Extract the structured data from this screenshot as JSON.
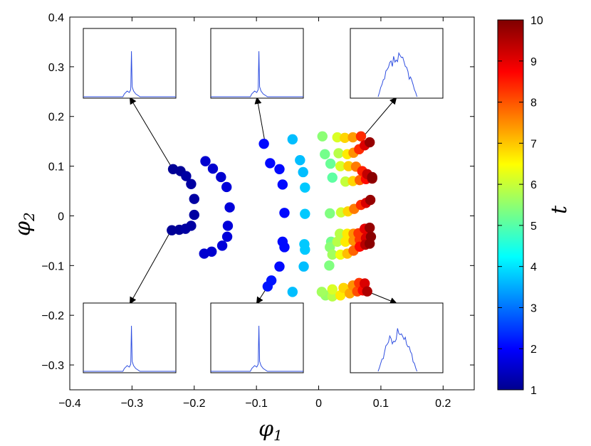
{
  "chart_data": {
    "type": "scatter",
    "xlabel_main": "φ",
    "xlabel_sub": "1",
    "ylabel_main": "φ",
    "ylabel_sub": "2",
    "xlim": [
      -0.4,
      0.25
    ],
    "ylim": [
      -0.35,
      0.4
    ],
    "xticks": [
      -0.4,
      -0.3,
      -0.2,
      -0.1,
      0,
      0.1,
      0.2
    ],
    "xtick_labels": [
      "−0.4",
      "−0.3",
      "−0.2",
      "−0.1",
      "0",
      "0.1",
      "0.2"
    ],
    "yticks": [
      0.4,
      0.3,
      0.2,
      0.1,
      0,
      -0.1,
      -0.2,
      -0.3
    ],
    "ytick_labels": [
      "0.4",
      "0.3",
      "0.2",
      "0.1",
      "0",
      "−0.1",
      "−0.2",
      "−0.3"
    ],
    "grid": false,
    "colorbar": {
      "label": "t",
      "min": 1,
      "max": 10,
      "ticks": [
        1,
        2,
        3,
        4,
        5,
        6,
        7,
        8,
        9,
        10
      ],
      "tick_labels": [
        "1",
        "2",
        "3",
        "4",
        "5",
        "6",
        "7",
        "8",
        "9",
        "10"
      ],
      "colormap": "jet"
    },
    "points": [
      {
        "x": -0.234,
        "y": 0.094,
        "t": 1.2
      },
      {
        "x": -0.222,
        "y": 0.09,
        "t": 1.2
      },
      {
        "x": -0.213,
        "y": 0.08,
        "t": 1.3
      },
      {
        "x": -0.205,
        "y": 0.064,
        "t": 1.3
      },
      {
        "x": -0.2,
        "y": 0.034,
        "t": 1.3
      },
      {
        "x": -0.2,
        "y": 0.002,
        "t": 1.3
      },
      {
        "x": -0.205,
        "y": -0.02,
        "t": 1.3
      },
      {
        "x": -0.214,
        "y": -0.026,
        "t": 1.3
      },
      {
        "x": -0.224,
        "y": -0.028,
        "t": 1.2
      },
      {
        "x": -0.236,
        "y": -0.029,
        "t": 1.2
      },
      {
        "x": -0.182,
        "y": 0.11,
        "t": 1.7
      },
      {
        "x": -0.17,
        "y": 0.095,
        "t": 1.7
      },
      {
        "x": -0.157,
        "y": 0.078,
        "t": 1.7
      },
      {
        "x": -0.148,
        "y": 0.058,
        "t": 1.8
      },
      {
        "x": -0.143,
        "y": 0.017,
        "t": 1.8
      },
      {
        "x": -0.146,
        "y": -0.02,
        "t": 1.8
      },
      {
        "x": -0.147,
        "y": -0.042,
        "t": 1.8
      },
      {
        "x": -0.155,
        "y": -0.06,
        "t": 1.8
      },
      {
        "x": -0.172,
        "y": -0.072,
        "t": 1.7
      },
      {
        "x": -0.184,
        "y": -0.076,
        "t": 1.7
      },
      {
        "x": -0.088,
        "y": 0.145,
        "t": 2.2
      },
      {
        "x": -0.078,
        "y": 0.106,
        "t": 2.2
      },
      {
        "x": -0.063,
        "y": 0.094,
        "t": 2.2
      },
      {
        "x": -0.058,
        "y": 0.063,
        "t": 2.2
      },
      {
        "x": -0.055,
        "y": 0.006,
        "t": 2.2
      },
      {
        "x": -0.058,
        "y": -0.052,
        "t": 2.2
      },
      {
        "x": -0.055,
        "y": -0.063,
        "t": 2.2
      },
      {
        "x": -0.063,
        "y": -0.102,
        "t": 2.2
      },
      {
        "x": -0.076,
        "y": -0.13,
        "t": 2.3
      },
      {
        "x": -0.082,
        "y": -0.142,
        "t": 2.3
      },
      {
        "x": -0.042,
        "y": 0.154,
        "t": 3.8
      },
      {
        "x": -0.03,
        "y": 0.112,
        "t": 3.8
      },
      {
        "x": -0.025,
        "y": 0.088,
        "t": 3.8
      },
      {
        "x": -0.022,
        "y": 0.057,
        "t": 3.9
      },
      {
        "x": -0.022,
        "y": 0.004,
        "t": 3.9
      },
      {
        "x": -0.023,
        "y": -0.057,
        "t": 3.9
      },
      {
        "x": -0.022,
        "y": -0.068,
        "t": 3.9
      },
      {
        "x": -0.024,
        "y": -0.102,
        "t": 3.8
      },
      {
        "x": -0.042,
        "y": -0.153,
        "t": 3.8
      },
      {
        "x": 0.006,
        "y": 0.16,
        "t": 5.6
      },
      {
        "x": 0.01,
        "y": 0.124,
        "t": 5.4
      },
      {
        "x": 0.019,
        "y": 0.105,
        "t": 5.3
      },
      {
        "x": 0.022,
        "y": 0.077,
        "t": 5.2
      },
      {
        "x": 0.018,
        "y": 0.005,
        "t": 5.5
      },
      {
        "x": 0.02,
        "y": -0.052,
        "t": 5.4
      },
      {
        "x": 0.018,
        "y": -0.063,
        "t": 5.6
      },
      {
        "x": 0.017,
        "y": -0.1,
        "t": 5.5
      },
      {
        "x": 0.005,
        "y": -0.153,
        "t": 5.8
      },
      {
        "x": 0.011,
        "y": -0.16,
        "t": 5.7
      },
      {
        "x": 0.03,
        "y": 0.158,
        "t": 6.3
      },
      {
        "x": 0.042,
        "y": 0.157,
        "t": 7.0
      },
      {
        "x": 0.055,
        "y": 0.158,
        "t": 7.5
      },
      {
        "x": 0.068,
        "y": 0.16,
        "t": 8.5
      },
      {
        "x": 0.032,
        "y": 0.126,
        "t": 6.0
      },
      {
        "x": 0.046,
        "y": 0.124,
        "t": 6.8
      },
      {
        "x": 0.056,
        "y": 0.127,
        "t": 7.6
      },
      {
        "x": 0.065,
        "y": 0.134,
        "t": 8.5
      },
      {
        "x": 0.074,
        "y": 0.142,
        "t": 9.2
      },
      {
        "x": 0.082,
        "y": 0.148,
        "t": 9.8
      },
      {
        "x": 0.035,
        "y": 0.1,
        "t": 6.3
      },
      {
        "x": 0.048,
        "y": 0.1,
        "t": 7.1
      },
      {
        "x": 0.06,
        "y": 0.099,
        "t": 7.8
      },
      {
        "x": 0.07,
        "y": 0.09,
        "t": 8.6
      },
      {
        "x": 0.078,
        "y": 0.084,
        "t": 9.4
      },
      {
        "x": 0.086,
        "y": 0.078,
        "t": 9.9
      },
      {
        "x": 0.043,
        "y": 0.069,
        "t": 6.1
      },
      {
        "x": 0.055,
        "y": 0.07,
        "t": 7.0
      },
      {
        "x": 0.066,
        "y": 0.072,
        "t": 8.0
      },
      {
        "x": 0.076,
        "y": 0.074,
        "t": 8.8
      },
      {
        "x": 0.086,
        "y": 0.075,
        "t": 9.8
      },
      {
        "x": 0.036,
        "y": 0.007,
        "t": 6.2
      },
      {
        "x": 0.047,
        "y": 0.009,
        "t": 7.0
      },
      {
        "x": 0.057,
        "y": 0.014,
        "t": 7.8
      },
      {
        "x": 0.068,
        "y": 0.022,
        "t": 8.5
      },
      {
        "x": 0.076,
        "y": 0.026,
        "t": 9.2
      },
      {
        "x": 0.083,
        "y": 0.032,
        "t": 9.8
      },
      {
        "x": 0.034,
        "y": -0.036,
        "t": 6.0
      },
      {
        "x": 0.046,
        "y": -0.036,
        "t": 6.8
      },
      {
        "x": 0.056,
        "y": -0.036,
        "t": 7.6
      },
      {
        "x": 0.064,
        "y": -0.035,
        "t": 8.4
      },
      {
        "x": 0.074,
        "y": -0.026,
        "t": 9.1
      },
      {
        "x": 0.082,
        "y": -0.024,
        "t": 9.8
      },
      {
        "x": 0.03,
        "y": -0.052,
        "t": 6.0
      },
      {
        "x": 0.043,
        "y": -0.052,
        "t": 6.8
      },
      {
        "x": 0.056,
        "y": -0.05,
        "t": 7.6
      },
      {
        "x": 0.066,
        "y": -0.048,
        "t": 8.4
      },
      {
        "x": 0.076,
        "y": -0.045,
        "t": 9.2
      },
      {
        "x": 0.084,
        "y": -0.042,
        "t": 9.9
      },
      {
        "x": 0.022,
        "y": -0.078,
        "t": 5.8
      },
      {
        "x": 0.035,
        "y": -0.078,
        "t": 6.5
      },
      {
        "x": 0.046,
        "y": -0.076,
        "t": 7.2
      },
      {
        "x": 0.056,
        "y": -0.07,
        "t": 8.0
      },
      {
        "x": 0.066,
        "y": -0.062,
        "t": 8.8
      },
      {
        "x": 0.075,
        "y": -0.058,
        "t": 9.5
      },
      {
        "x": 0.082,
        "y": -0.056,
        "t": 9.9
      },
      {
        "x": 0.022,
        "y": -0.148,
        "t": 6.3
      },
      {
        "x": 0.04,
        "y": -0.145,
        "t": 7.0
      },
      {
        "x": 0.055,
        "y": -0.14,
        "t": 7.6
      },
      {
        "x": 0.065,
        "y": -0.135,
        "t": 8.4
      },
      {
        "x": 0.074,
        "y": -0.136,
        "t": 9.2
      },
      {
        "x": 0.022,
        "y": -0.162,
        "t": 6.0
      },
      {
        "x": 0.035,
        "y": -0.16,
        "t": 6.8
      },
      {
        "x": 0.05,
        "y": -0.156,
        "t": 7.4
      },
      {
        "x": 0.062,
        "y": -0.152,
        "t": 8.2
      },
      {
        "x": 0.071,
        "y": -0.15,
        "t": 8.8
      },
      {
        "x": 0.078,
        "y": -0.152,
        "t": 9.6
      }
    ],
    "inset_plots": [
      {
        "position": "top-left",
        "arrow_from": {
          "x": -0.235,
          "y": 0.095
        },
        "sharp_peak": true
      },
      {
        "position": "top-center",
        "arrow_from": {
          "x": -0.086,
          "y": 0.146
        },
        "sharp_peak": true
      },
      {
        "position": "top-right",
        "arrow_from": {
          "x": 0.072,
          "y": 0.16
        },
        "sharp_peak": false
      },
      {
        "position": "bottom-left",
        "arrow_from": {
          "x": -0.237,
          "y": -0.029
        },
        "sharp_peak": true
      },
      {
        "position": "bottom-center",
        "arrow_from": {
          "x": -0.082,
          "y": -0.142
        },
        "sharp_peak": true
      },
      {
        "position": "bottom-right",
        "arrow_from": {
          "x": 0.074,
          "y": -0.15
        },
        "sharp_peak": false
      }
    ],
    "colors": {
      "inset_line": "#2f4fe0",
      "axes": "#000000",
      "background": "#ffffff"
    }
  }
}
